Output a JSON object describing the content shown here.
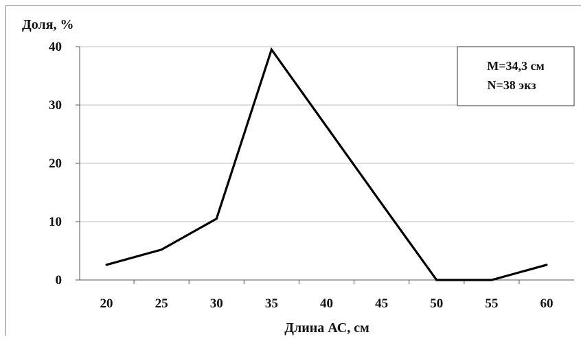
{
  "chart_data": {
    "type": "line",
    "title": "",
    "ylabel": "Доля, %",
    "xlabel": "Длина АС, см",
    "x": [
      20,
      25,
      30,
      35,
      40,
      45,
      50,
      55,
      60
    ],
    "series": [
      {
        "values": [
          2.6,
          5.2,
          10.5,
          39.5,
          26.3,
          13.1,
          0,
          0,
          2.6
        ]
      }
    ],
    "ylim": [
      0,
      40
    ],
    "yticks": [
      0,
      10,
      20,
      30,
      40
    ],
    "grid": "horizontal",
    "line_color": "#000000",
    "annotation": {
      "line1": "M=34,3 см",
      "line2": "N=38 экз"
    }
  }
}
